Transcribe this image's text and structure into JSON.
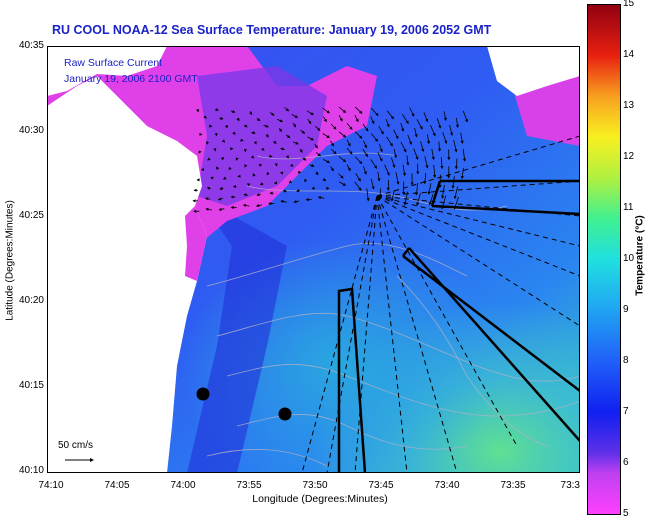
{
  "title": "RU COOL  NOAA-12  Sea Surface Temperature:  January 19, 2006 2052 GMT",
  "legend": {
    "line1": "Raw Surface Current",
    "line2": "January 19, 2006 2100 GMT"
  },
  "scale": {
    "label": "50 cm/s"
  },
  "axes": {
    "ylabel": "Latitude (Degrees:Minutes)",
    "xlabel": "Longitude (Degrees:Minutes)",
    "yticks": [
      "40:35",
      "40:30",
      "40:25",
      "40:20",
      "40:15",
      "40:10"
    ],
    "xticks": [
      "74:10",
      "74:05",
      "74:00",
      "73:55",
      "73:50",
      "73:45",
      "73:40",
      "73:35",
      "73:3"
    ]
  },
  "colorbar": {
    "title": "Temperature (°C)",
    "ticks": [
      "15",
      "14",
      "13",
      "12",
      "11",
      "10",
      "9",
      "8",
      "7",
      "6",
      "5"
    ],
    "range": [
      5,
      15
    ],
    "colors": [
      "#ff00ff",
      "#8000ff",
      "#0000ff",
      "#0080ff",
      "#00ffff",
      "#00ff80",
      "#ffff00",
      "#ff8000",
      "#ff0000",
      "#800000"
    ]
  }
}
